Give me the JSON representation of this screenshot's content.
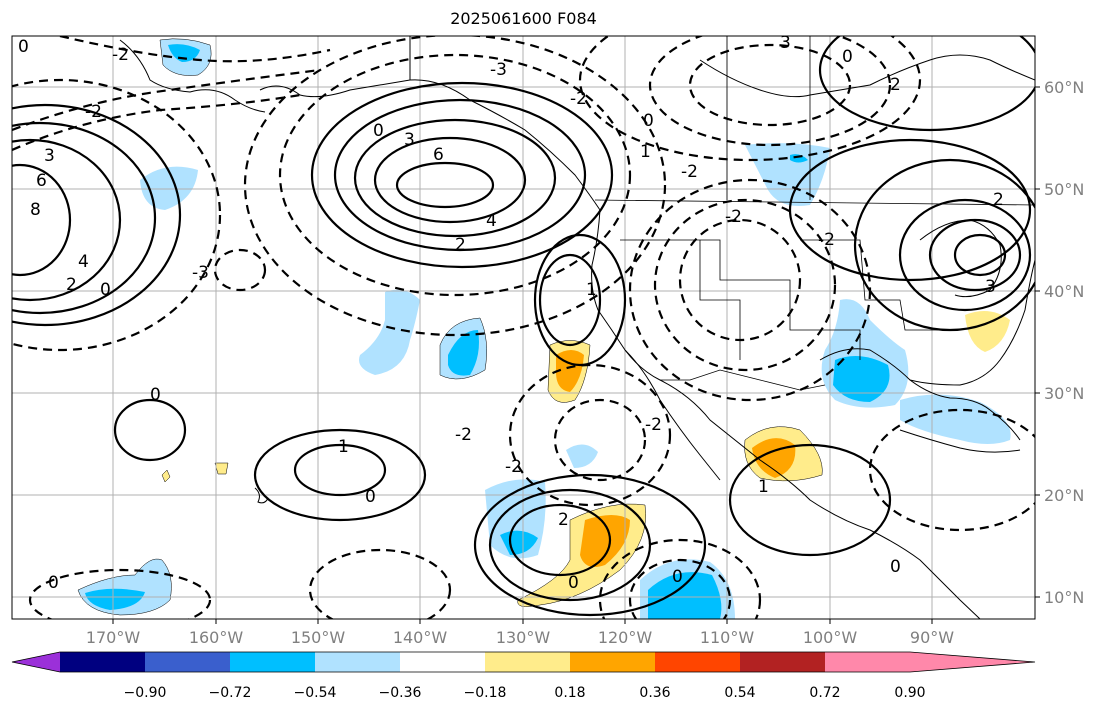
{
  "title": "2025061600 F084",
  "lat_labels": [
    "60°N",
    "50°N",
    "40°N",
    "30°N",
    "20°N",
    "10°N"
  ],
  "lon_labels": [
    "170°W",
    "160°W",
    "150°W",
    "140°W",
    "130°W",
    "120°W",
    "110°W",
    "100°W",
    "90°W"
  ],
  "colorbar": {
    "ticks": [
      "−0.90",
      "−0.72",
      "−0.54",
      "−0.36",
      "−0.18",
      "0.18",
      "0.36",
      "0.54",
      "0.72",
      "0.90"
    ],
    "colors": [
      "#9b30d9",
      "#000080",
      "#3a5fcd",
      "#00bfff",
      "#b0e2ff",
      "#ffffff",
      "#ffec8b",
      "#ffa500",
      "#ff4500",
      "#b22222",
      "#ff88aa"
    ]
  },
  "contour_labels": [
    "0",
    "2",
    "3",
    "4",
    "6",
    "8",
    "-2",
    "1",
    "-3"
  ],
  "colors": {
    "blue_light": "#b0e2ff",
    "blue": "#00bfff",
    "yellow": "#ffec8b",
    "orange": "#ffa500"
  }
}
